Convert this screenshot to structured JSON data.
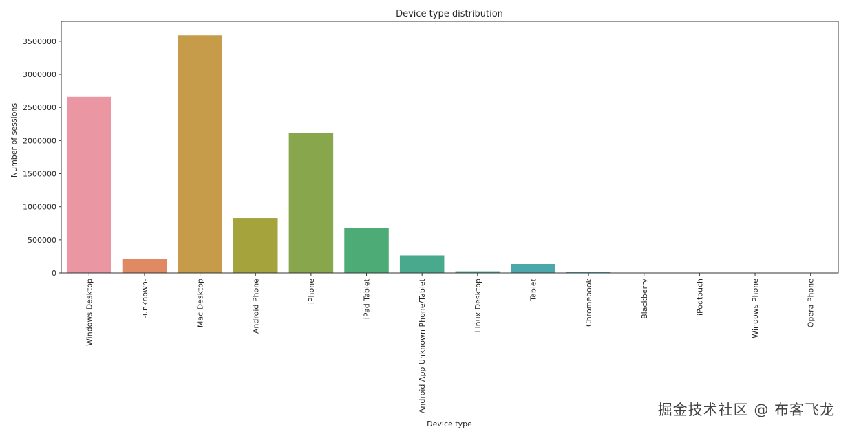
{
  "chart_data": {
    "type": "bar",
    "title": "Device type distribution",
    "xlabel": "Device type",
    "ylabel": "Number of sessions",
    "ylim": [
      0,
      3800000
    ],
    "yticks": [
      0,
      500000,
      1000000,
      1500000,
      2000000,
      2500000,
      3000000,
      3500000
    ],
    "grid": false,
    "categories": [
      "Windows Desktop",
      "-unknown-",
      "Mac Desktop",
      "Android Phone",
      "iPhone",
      "iPad Tablet",
      "Android App Unknown Phone/Tablet",
      "Linux Desktop",
      "Tablet",
      "Chromebook",
      "Blackberry",
      "iPodtouch",
      "Windows Phone",
      "Opera Phone"
    ],
    "values": [
      2660000,
      210000,
      3590000,
      830000,
      2110000,
      680000,
      265000,
      25000,
      135000,
      20000,
      2000,
      5000,
      1500,
      1000
    ],
    "colors": [
      "#ea96a3",
      "#df8a63",
      "#c69c4a",
      "#a4a33c",
      "#88a64b",
      "#4dac75",
      "#49a98c",
      "#48a99e",
      "#4aa8ad",
      "#4fa6be",
      "#6fa0d8",
      "#9e96e6",
      "#cc8ce5",
      "#e78bc7"
    ]
  },
  "watermark": "掘金技术社区 @ 布客飞龙"
}
